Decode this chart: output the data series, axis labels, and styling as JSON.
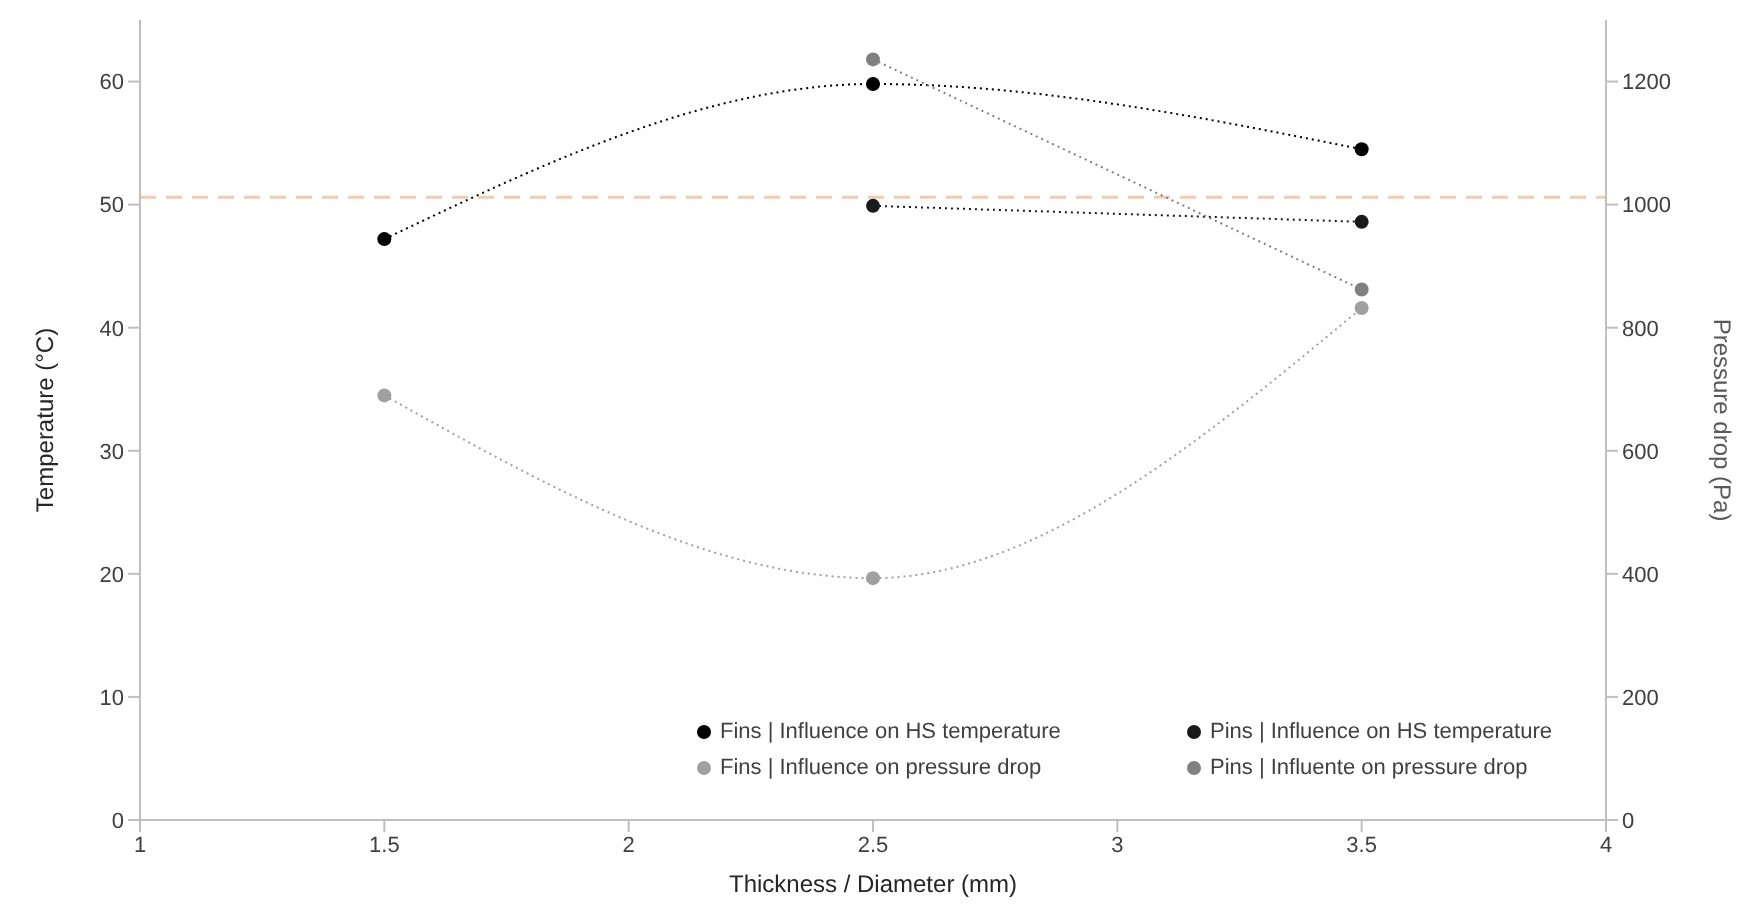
{
  "chart_data": {
    "type": "line",
    "xlabel": "Thickness / Diameter (mm)",
    "ylabel": "Temperature (°C)",
    "y2label": "Pressure drop (Pa)",
    "x": [
      1.5,
      2.5,
      3.5
    ],
    "series": [
      {
        "name": "Fins | Influence on HS temperature",
        "color": "#000000",
        "values": [
          47.2,
          59.8,
          54.5
        ]
      },
      {
        "name": "Pins | Influence on HS temperature",
        "color": "#1a1a1a",
        "values": [
          null,
          49.9,
          48.6
        ]
      },
      {
        "name": "Fins | Influence on pressure drop",
        "color": "#a0a0a0",
        "axis": "y2",
        "values": [
          690,
          393,
          832
        ]
      },
      {
        "name": "Pins | Influente on pressure drop",
        "color": "#808080",
        "axis": "y2",
        "values": [
          null,
          1236,
          862
        ]
      }
    ],
    "xlim": [
      1,
      4
    ],
    "xticks": [
      1,
      1.5,
      2,
      2.5,
      3,
      3.5,
      4
    ],
    "ylim": [
      0,
      65
    ],
    "yticks": [
      0,
      10,
      20,
      30,
      40,
      50,
      60
    ],
    "y2lim": [
      0,
      1300
    ],
    "y2ticks": [
      0,
      200,
      400,
      600,
      800,
      1000,
      1200
    ],
    "ref_lines": [
      {
        "axis": "y",
        "value": 50.6,
        "color": "#f4cbb0",
        "line_style": "dashed"
      }
    ],
    "marker": "circle",
    "line_style": "dotted",
    "legend": "bottom right",
    "grid": false
  }
}
